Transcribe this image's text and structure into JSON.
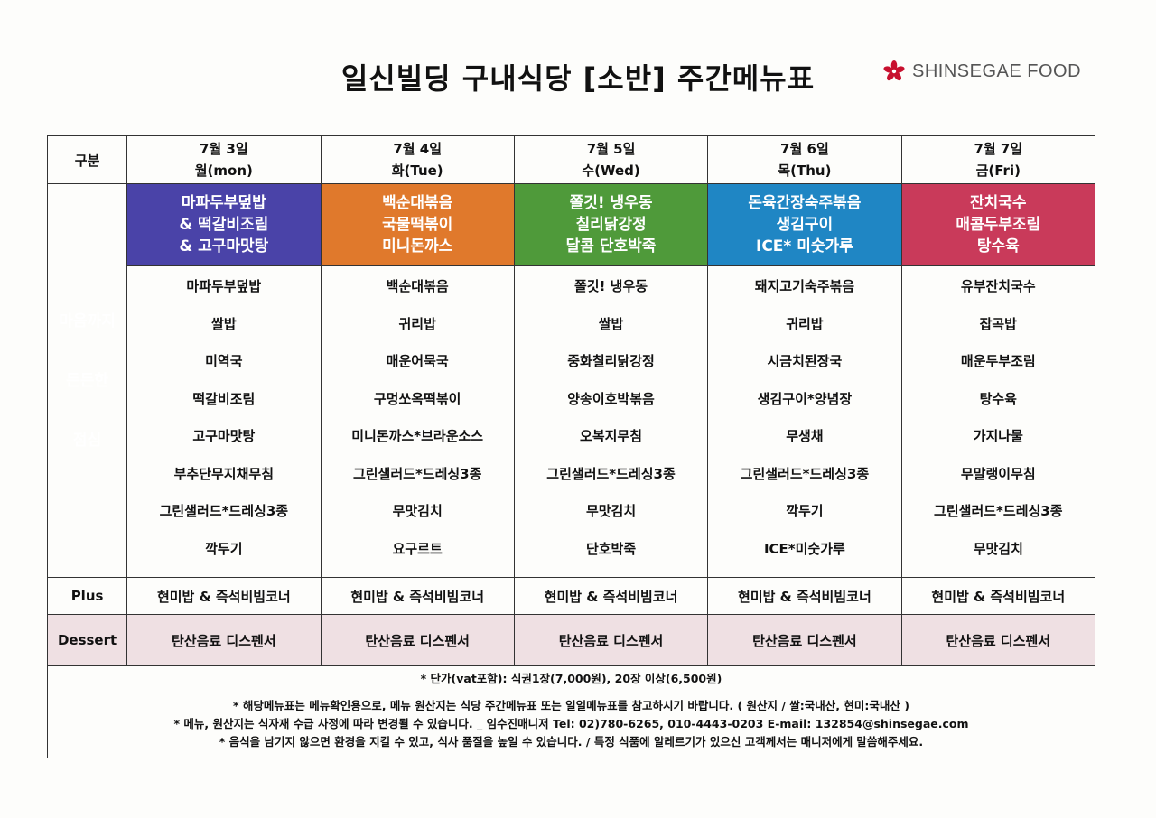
{
  "header": {
    "title": "일신빌딩 구내식당 [소반] 주간메뉴표",
    "brand": "SHINSEGAE FOOD",
    "logo_icon": "flower-icon",
    "logo_color": "#c8102e"
  },
  "table": {
    "corner_label": "구분",
    "days": [
      {
        "date": "7월 3일",
        "weekday": "월(mon)"
      },
      {
        "date": "7월 4일",
        "weekday": "화(Tue)"
      },
      {
        "date": "7월 5일",
        "weekday": "수(Wed)"
      },
      {
        "date": "7월 6일",
        "weekday": "목(Thu)"
      },
      {
        "date": "7월 7일",
        "weekday": "금(Fri)"
      }
    ],
    "banners": [
      {
        "color": "#4a43a8",
        "lines": [
          "마파두부덮밥",
          "& 떡갈비조림",
          "& 고구마맛탕"
        ]
      },
      {
        "color": "#e0792c",
        "lines": [
          "백순대볶음",
          "국물떡볶이",
          "미니돈까스"
        ]
      },
      {
        "color": "#4f9a3a",
        "lines": [
          "쫄깃! 냉우동",
          "칠리닭강정",
          "달콤 단호박죽"
        ]
      },
      {
        "color": "#1f86c4",
        "lines": [
          "돈육간장숙주볶음",
          "생김구이",
          "ICE* 미숫가루"
        ]
      },
      {
        "color": "#c93a5a",
        "lines": [
          "잔치국수",
          "매콤두부조림",
          "탕수육"
        ]
      }
    ],
    "side_label": [
      "마음까지",
      "든든한",
      "점심"
    ],
    "menus": [
      [
        "마파두부덮밥",
        "쌀밥",
        "미역국",
        "떡갈비조림",
        "고구마맛탕",
        "부추단무지채무침",
        "그린샐러드*드레싱3종",
        "깍두기"
      ],
      [
        "백순대볶음",
        "귀리밥",
        "매운어묵국",
        "구멍쏘옥떡볶이",
        "미니돈까스*브라운소스",
        "그린샐러드*드레싱3종",
        "무맛김치",
        "요구르트"
      ],
      [
        "쫄깃! 냉우동",
        "쌀밥",
        "중화칠리닭강정",
        "양송이호박볶음",
        "오복지무침",
        "그린샐러드*드레싱3종",
        "무맛김치",
        "단호박죽"
      ],
      [
        "돼지고기숙주볶음",
        "귀리밥",
        "시금치된장국",
        "생김구이*양념장",
        "무생채",
        "그린샐러드*드레싱3종",
        "깍두기",
        "ICE*미숫가루"
      ],
      [
        "유부잔치국수",
        "잡곡밥",
        "매운두부조림",
        "탕수육",
        "가지나물",
        "무말랭이무침",
        "그린샐러드*드레싱3종",
        "무맛김치"
      ]
    ],
    "plus_label": "Plus",
    "plus_text": "현미밥 & 즉석비빔코너",
    "dessert_label": "Dessert",
    "dessert_text": "탄산음료 디스펜서",
    "dessert_color": "#efe0e3"
  },
  "notes": [
    "* 단가(vat포함): 식권1장(7,000원), 20장 이상(6,500원)",
    "* 해당메뉴표는 메뉴확인용으로, 메뉴 원산지는 식당 주간메뉴표 또는 일일메뉴표를 참고하시기 바랍니다. ( 원산지 / 쌀:국내산, 현미:국내산 )",
    "* 메뉴, 원산지는 식자재 수급 사정에 따라 변경될 수 있습니다. _ 임수진매니저 Tel: 02)780-6265, 010-4443-0203 E-mail: 132854@shinsegae.com",
    "* 음식을 남기지 않으면 환경을 지킬 수 있고, 식사 품질을 높일 수 있습니다. / 특정 식품에 알레르기가 있으신 고객께서는 매니저에게 말씀해주세요."
  ]
}
